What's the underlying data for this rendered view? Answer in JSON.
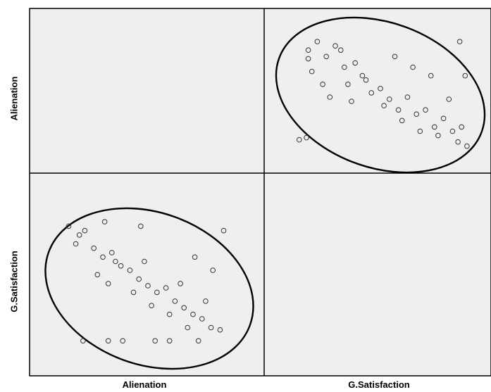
{
  "chart_data": {
    "type": "scatter",
    "title": "",
    "variables": [
      "Alienation",
      "G.Satisfaction"
    ],
    "row_labels": [
      "Alienation",
      "G.Satisfaction"
    ],
    "column_labels": [
      "Alienation",
      "G.Satisfaction"
    ],
    "diagonal": "empty",
    "correlation": "negative",
    "confidence_ellipse": true,
    "marker": "open-circle",
    "grid": false,
    "panel_background": "#efefef",
    "ellipse_color": "#000000",
    "marker_color": "#333333",
    "panels": [
      {
        "row": "Alienation",
        "col": "G.Satisfaction",
        "x_variable": "G.Satisfaction",
        "y_variable": "Alienation",
        "points": [
          [
            1,
            5.8
          ],
          [
            1,
            5.4
          ],
          [
            1.5,
            6.2
          ],
          [
            1.2,
            4.8
          ],
          [
            2,
            5.5
          ],
          [
            2.5,
            6
          ],
          [
            3,
            5
          ],
          [
            3.2,
            4.2
          ],
          [
            4,
            4.6
          ],
          [
            4.5,
            3.8
          ],
          [
            5,
            4
          ],
          [
            5.5,
            3.5
          ],
          [
            6,
            3
          ],
          [
            6.5,
            3.6
          ],
          [
            7,
            2.8
          ],
          [
            7.5,
            3
          ],
          [
            8,
            2.2
          ],
          [
            8.5,
            2.6
          ],
          [
            9,
            2
          ],
          [
            9.3,
            1.5
          ],
          [
            2.8,
            5.8
          ],
          [
            3.6,
            5.2
          ],
          [
            4.2,
            4.4
          ],
          [
            5.2,
            3.2
          ],
          [
            6.2,
            2.5
          ],
          [
            7.2,
            2
          ],
          [
            8.2,
            1.8
          ],
          [
            1.8,
            4.2
          ],
          [
            2.2,
            3.6
          ],
          [
            3.4,
            3.4
          ],
          [
            0.5,
            1.6
          ],
          [
            0.9,
            1.7
          ],
          [
            9.5,
            2.2
          ],
          [
            9.8,
            1.3
          ],
          [
            8.8,
            3.5
          ],
          [
            7.8,
            4.6
          ],
          [
            6.8,
            5
          ],
          [
            5.8,
            5.5
          ],
          [
            9.4,
            6.2
          ],
          [
            9.7,
            4.6
          ]
        ]
      },
      {
        "row": "G.Satisfaction",
        "col": "Alienation",
        "x_variable": "Alienation",
        "y_variable": "G.Satisfaction",
        "points": [
          [
            1.5,
            6
          ],
          [
            1,
            5.4
          ],
          [
            2,
            5.2
          ],
          [
            2.5,
            4.8
          ],
          [
            3,
            5
          ],
          [
            3.5,
            4.4
          ],
          [
            4,
            4.2
          ],
          [
            4.5,
            3.8
          ],
          [
            5,
            3.5
          ],
          [
            5.5,
            3.2
          ],
          [
            6,
            3.4
          ],
          [
            6.5,
            2.8
          ],
          [
            7,
            2.5
          ],
          [
            7.5,
            2.2
          ],
          [
            8,
            2
          ],
          [
            8.5,
            1.6
          ],
          [
            9,
            1.5
          ],
          [
            3.2,
            4.6
          ],
          [
            4.2,
            3.2
          ],
          [
            5.2,
            2.6
          ],
          [
            6.2,
            2.2
          ],
          [
            7.2,
            1.6
          ],
          [
            2.2,
            4
          ],
          [
            2.8,
            3.6
          ],
          [
            4.8,
            4.6
          ],
          [
            6.8,
            3.6
          ],
          [
            8.2,
            2.8
          ],
          [
            1.2,
            5.8
          ],
          [
            0.6,
            6.2
          ],
          [
            2.6,
            6.4
          ],
          [
            4.6,
            6.2
          ],
          [
            9.2,
            6
          ],
          [
            7.6,
            4.8
          ],
          [
            8.6,
            4.2
          ],
          [
            1.4,
            1
          ],
          [
            2.8,
            1
          ],
          [
            3.6,
            1
          ],
          [
            5.4,
            1
          ],
          [
            6.2,
            1
          ],
          [
            7.8,
            1
          ]
        ]
      }
    ]
  }
}
